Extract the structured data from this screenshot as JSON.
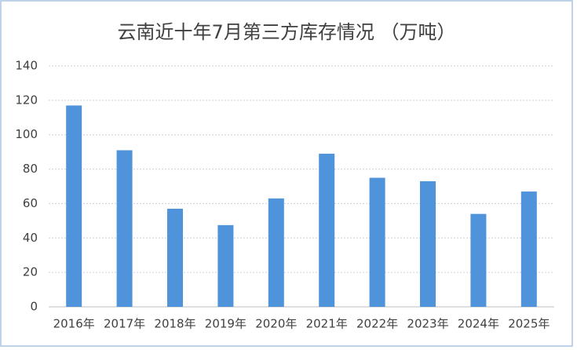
{
  "chart_data": {
    "type": "bar",
    "title": "云南近十年7月第三方库存情况 （万吨）",
    "categories": [
      "2016年",
      "2017年",
      "2018年",
      "2019年",
      "2020年",
      "2021年",
      "2022年",
      "2023年",
      "2024年",
      "2025年"
    ],
    "values": [
      117,
      91,
      57,
      47.5,
      63,
      89,
      75,
      73,
      54,
      67
    ],
    "color": "#4f94db",
    "ylim": [
      0,
      140
    ],
    "yticks": [
      0,
      20,
      40,
      60,
      80,
      100,
      120,
      140
    ],
    "grid": true
  }
}
